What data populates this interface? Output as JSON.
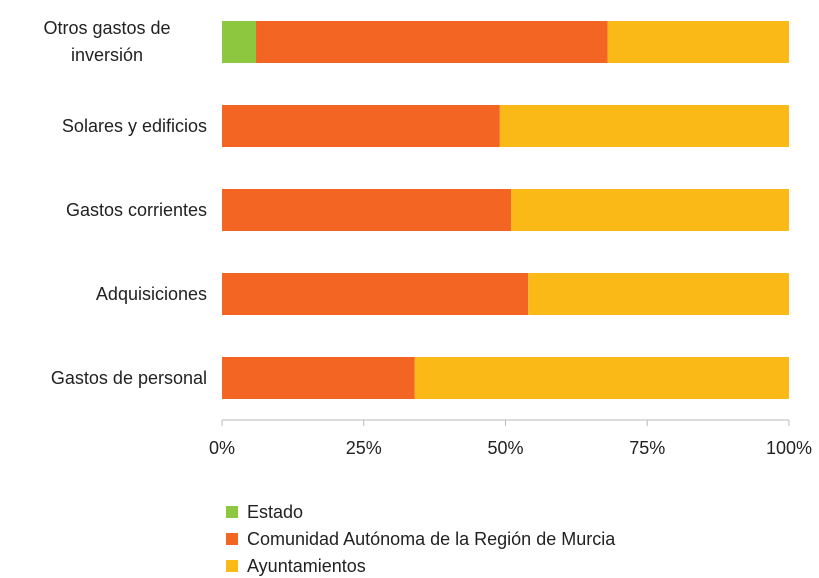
{
  "chart_data": {
    "type": "stacked-barh",
    "categories": [
      "Otros gastos de inversión",
      "Solares y edificios",
      "Gastos corrientes",
      "Adquisiciones",
      "Gastos de personal"
    ],
    "series": [
      {
        "name": "Estado",
        "color": "#8dc63f",
        "values": [
          6,
          0,
          0,
          0,
          0
        ]
      },
      {
        "name": "Comunidad Autónoma de la Región de Murcia",
        "color": "#f26522",
        "values": [
          62,
          49,
          51,
          54,
          34
        ]
      },
      {
        "name": "Ayuntamientos",
        "color": "#fbb917",
        "values": [
          32,
          51,
          49,
          46,
          66
        ]
      }
    ],
    "xlim": [
      0,
      100
    ],
    "xticks": [
      {
        "value": 0,
        "label": "0%"
      },
      {
        "value": 25,
        "label": "25%"
      },
      {
        "value": 50,
        "label": "50%"
      },
      {
        "value": 75,
        "label": "75%"
      },
      {
        "value": 100,
        "label": "100%"
      }
    ]
  }
}
